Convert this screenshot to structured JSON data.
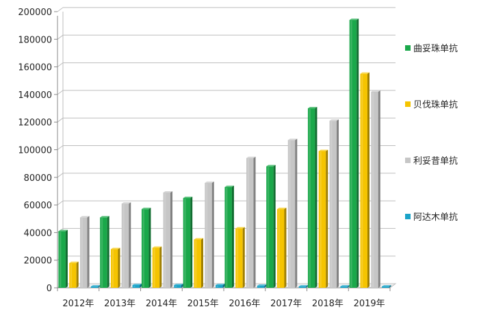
{
  "chart_data": {
    "type": "bar",
    "title": "",
    "xlabel": "",
    "ylabel": "",
    "ylim": [
      0,
      200000
    ],
    "yticks": [
      "0",
      "20000",
      "40000",
      "60000",
      "80000",
      "100000",
      "120000",
      "140000",
      "160000",
      "180000",
      "200000"
    ],
    "categories": [
      "2012年",
      "2013年",
      "2014年",
      "2015年",
      "2016年",
      "2017年",
      "2018年",
      "2019年"
    ],
    "grid": true,
    "legend_position": "right",
    "series": [
      {
        "name": "曲妥珠单抗",
        "color": "#1aa84a",
        "values": [
          41000,
          51000,
          57000,
          65000,
          73000,
          88000,
          130000,
          194000
        ]
      },
      {
        "name": "贝伐珠单抗",
        "color": "#f5c400",
        "values": [
          18000,
          28000,
          29000,
          35000,
          43000,
          57000,
          99000,
          155000
        ]
      },
      {
        "name": "利妥昔单抗",
        "color": "#c6c6c6",
        "values": [
          51000,
          61000,
          69000,
          76000,
          94000,
          107000,
          121000,
          142000
        ]
      },
      {
        "name": "阿达木单抗",
        "color": "#1aa3c8",
        "values": [
          1000,
          2000,
          2000,
          2000,
          1500,
          1000,
          1000,
          1000
        ]
      }
    ]
  }
}
